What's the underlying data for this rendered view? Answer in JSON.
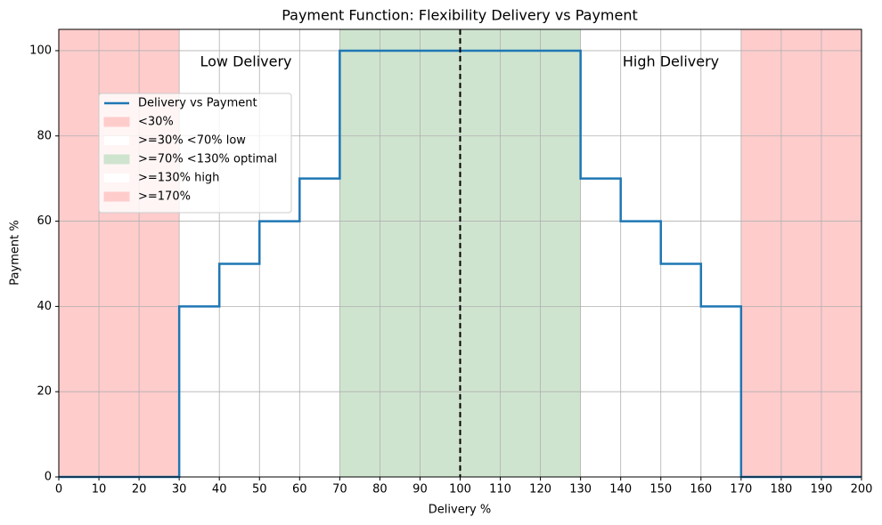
{
  "chart_data": {
    "type": "step",
    "title": "Payment Function: Flexibility Delivery vs Payment",
    "x_label": "Delivery %",
    "y_label": "Payment %",
    "xlim": [
      0,
      200
    ],
    "ylim": [
      0,
      105
    ],
    "xticks": [
      0,
      10,
      20,
      30,
      40,
      50,
      60,
      70,
      80,
      90,
      100,
      110,
      120,
      130,
      140,
      150,
      160,
      170,
      180,
      190,
      200
    ],
    "yticks": [
      0,
      20,
      40,
      60,
      80,
      100
    ],
    "grid": true,
    "series": [
      {
        "name": "Delivery vs Payment",
        "color": "#1f77b4",
        "x": [
          0,
          30,
          30,
          40,
          40,
          50,
          50,
          60,
          60,
          70,
          70,
          130,
          130,
          140,
          140,
          150,
          150,
          160,
          160,
          170,
          170,
          200
        ],
        "values": [
          0,
          0,
          40,
          40,
          50,
          50,
          60,
          60,
          70,
          70,
          100,
          100,
          70,
          70,
          60,
          60,
          50,
          50,
          40,
          40,
          0,
          0
        ]
      }
    ],
    "spans": [
      {
        "name": "<30%",
        "color": "#ffcccc",
        "range": [
          0,
          30
        ]
      },
      {
        "name": ">=30% <70% low",
        "color": "#ffffff",
        "range": [
          30,
          70
        ]
      },
      {
        "name": ">=70% <130% optimal",
        "color": "#cfe4cf",
        "range": [
          70,
          130
        ]
      },
      {
        "name": ">=130% high",
        "color": "#ffffff",
        "range": [
          130,
          170
        ]
      },
      {
        "name": ">=170%",
        "color": "#ffcccc",
        "range": [
          170,
          200
        ]
      }
    ],
    "vline": {
      "x": 100,
      "color": "#000000"
    },
    "annotations": [
      "Low Delivery",
      "High Delivery"
    ],
    "legend": "upper left"
  }
}
